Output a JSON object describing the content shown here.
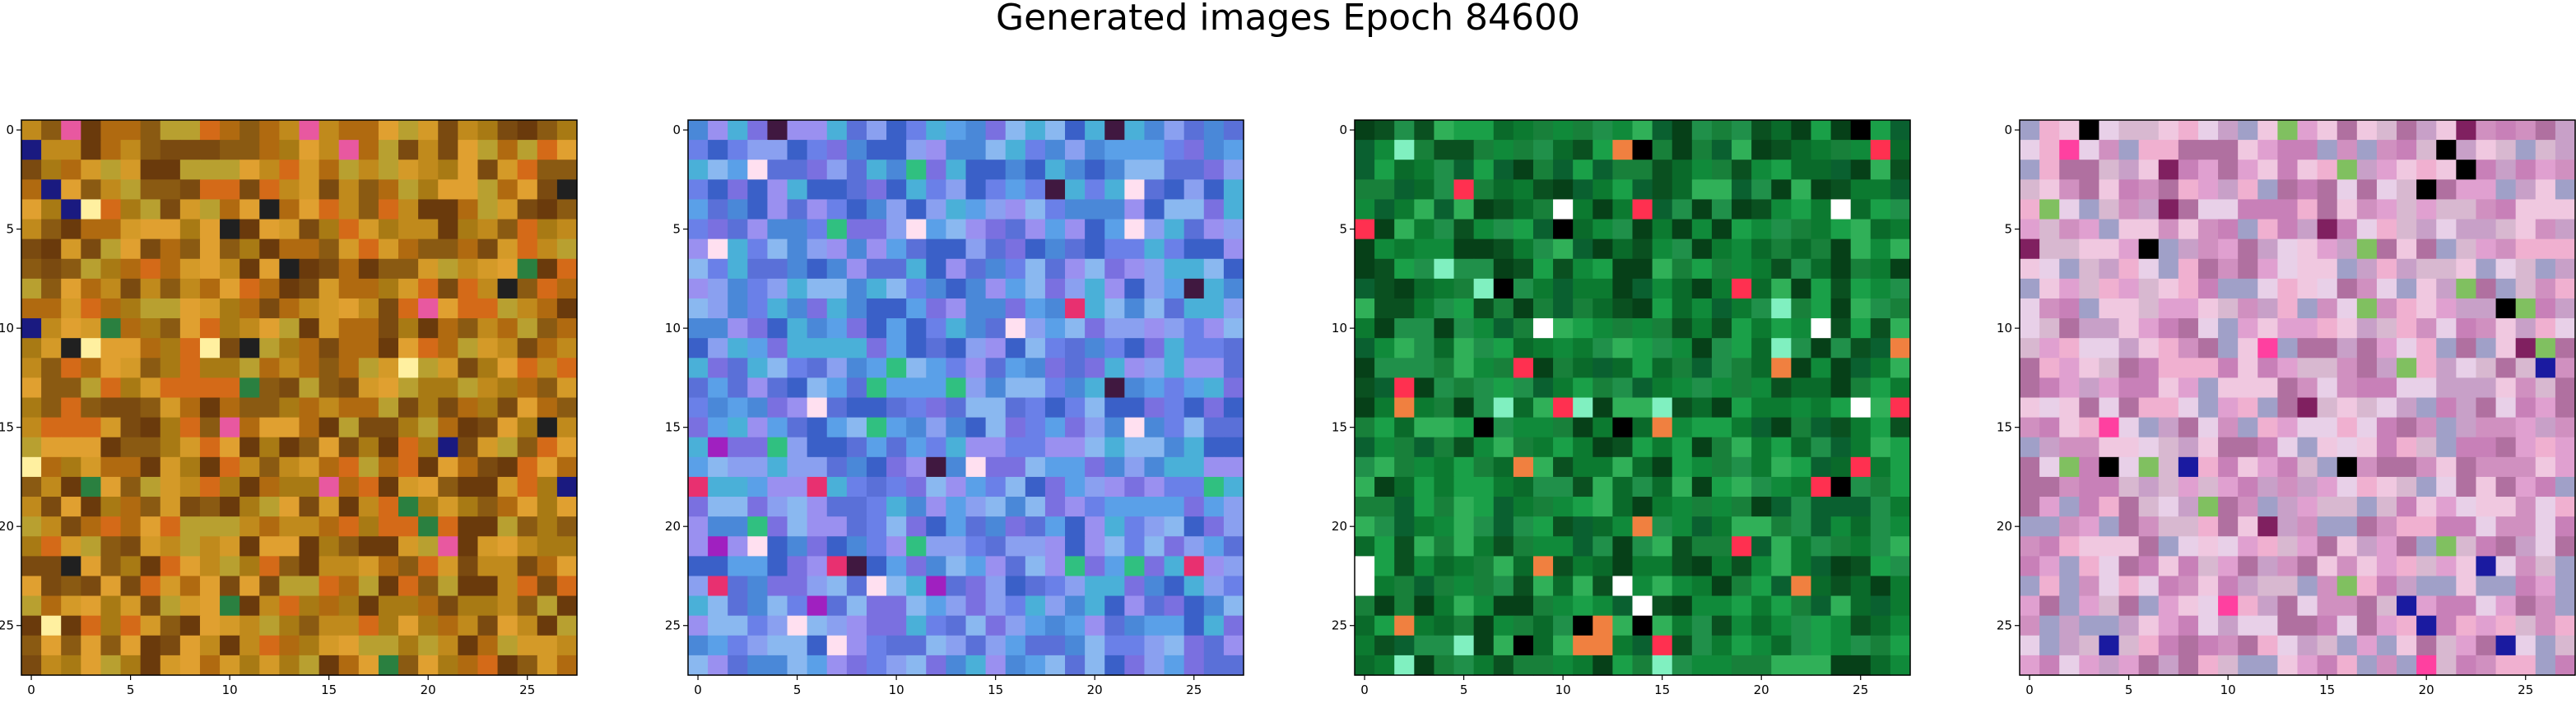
{
  "title": "Generated images Epoch 84600",
  "chart_data": {
    "type": "heatmap",
    "grid_size": [
      28,
      28
    ],
    "x_ticks": [
      "0",
      "5",
      "10",
      "15",
      "20",
      "25"
    ],
    "y_ticks": [
      "0",
      "5",
      "10",
      "15",
      "20",
      "25"
    ],
    "xlim": [
      -0.5,
      27.5
    ],
    "ylim": [
      27.5,
      -0.5
    ],
    "panels": [
      {
        "name": "image-1",
        "palette": [
          "#c08a1c",
          "#b06a10",
          "#8a5a12",
          "#d49a28",
          "#a87a14",
          "#6a3a0c",
          "#d46a18",
          "#b8a030",
          "#7a4a10",
          "#e0a030"
        ],
        "accents": [
          "#e858a0",
          "#1a1a80",
          "#fff0a0",
          "#2a8040",
          "#202020"
        ]
      },
      {
        "name": "image-2",
        "palette": [
          "#6a80e8",
          "#5a70d8",
          "#8aa0f0",
          "#4a88d8",
          "#7a70e0",
          "#5aa0e8",
          "#3a60c8",
          "#9a90f0",
          "#4ab0d8",
          "#8ab8f0"
        ],
        "accents": [
          "#e83070",
          "#ffe0f0",
          "#a020c0",
          "#30c080",
          "#401840"
        ]
      },
      {
        "name": "image-3",
        "palette": [
          "#0a6a2a",
          "#108a3a",
          "#0a5020",
          "#1aa048",
          "#0c7a30",
          "#20904a",
          "#064018",
          "#30b058",
          "#0a6030",
          "#18803a"
        ],
        "accents": [
          "#ff3050",
          "#f08040",
          "#ffffff",
          "#000000",
          "#80f0c0"
        ]
      },
      {
        "name": "image-4",
        "palette": [
          "#e0a0d0",
          "#c880b8",
          "#f0c8e0",
          "#d090c0",
          "#b070a0",
          "#e8d0e8",
          "#c8a0c8",
          "#f0b0d0",
          "#a0a0c8",
          "#d8b8d0"
        ],
        "accents": [
          "#000000",
          "#1a1aa0",
          "#802060",
          "#80c060",
          "#ff40a0"
        ]
      }
    ]
  }
}
